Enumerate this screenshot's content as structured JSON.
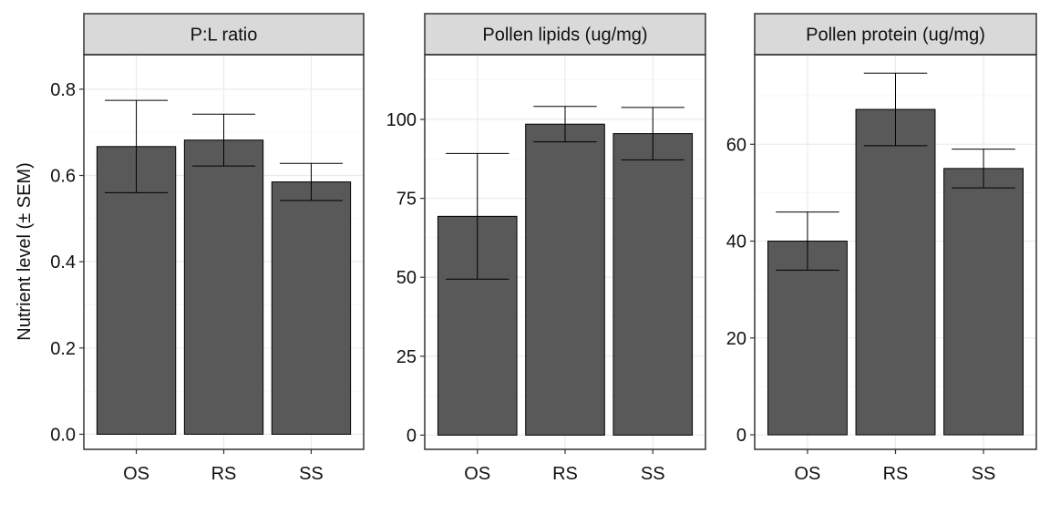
{
  "chart_data": {
    "type": "bar",
    "ylabel": "Nutrient level (± SEM)",
    "categories": [
      "OS",
      "RS",
      "SS"
    ],
    "panels": [
      {
        "title": "P:L ratio",
        "values": [
          0.667,
          0.682,
          0.585
        ],
        "errors": [
          0.107,
          0.06,
          0.043
        ],
        "ylim": [
          -0.035,
          0.88
        ],
        "yticks": [
          0,
          0.2,
          0.4,
          0.6,
          0.8
        ],
        "ytick_labels": [
          "0.0",
          "0.2",
          "0.4",
          "0.6",
          "0.8"
        ]
      },
      {
        "title": "Pollen lipids (ug/mg)",
        "values": [
          69.3,
          98.5,
          95.5
        ],
        "errors": [
          19.9,
          5.6,
          8.3
        ],
        "ylim": [
          -4.5,
          120.5
        ],
        "yticks": [
          0,
          25,
          50,
          75,
          100
        ],
        "ytick_labels": [
          "0",
          "25",
          "50",
          "75",
          "100"
        ]
      },
      {
        "title": "Pollen protein (ug/mg)",
        "values": [
          40.0,
          67.2,
          55.0
        ],
        "errors": [
          6.0,
          7.5,
          4.0
        ],
        "ylim": [
          -3.0,
          78.5
        ],
        "yticks": [
          0,
          20,
          40,
          60
        ],
        "ytick_labels": [
          "0",
          "20",
          "40",
          "60"
        ]
      }
    ],
    "grid": true,
    "legend": "none"
  }
}
